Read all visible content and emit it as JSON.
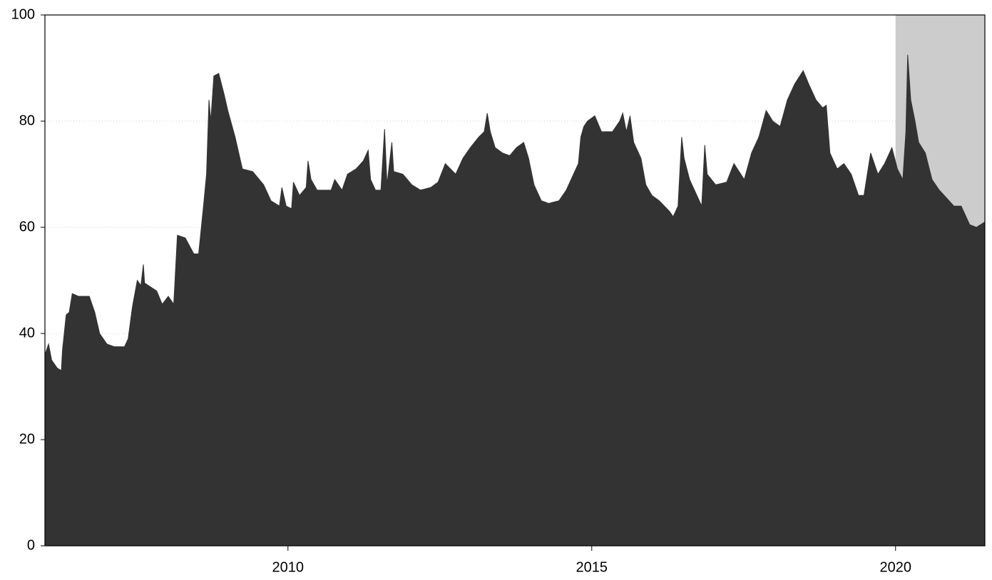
{
  "chart_data": {
    "type": "area",
    "color": "#333333",
    "grid": true,
    "x": [
      2006.0,
      2006.06,
      2006.11,
      2006.2,
      2006.27,
      2006.29,
      2006.35,
      2006.4,
      2006.45,
      2006.55,
      2006.73,
      2006.82,
      2006.9,
      2007.02,
      2007.14,
      2007.31,
      2007.37,
      2007.44,
      2007.52,
      2007.58,
      2007.62,
      2007.64,
      2007.84,
      2007.93,
      2008.03,
      2008.12,
      2008.18,
      2008.31,
      2008.45,
      2008.53,
      2008.61,
      2008.66,
      2008.7,
      2008.73,
      2008.78,
      2008.86,
      2008.95,
      2009.01,
      2009.13,
      2009.25,
      2009.42,
      2009.6,
      2009.72,
      2009.86,
      2009.9,
      2009.97,
      2010.06,
      2010.09,
      2010.19,
      2010.3,
      2010.33,
      2010.38,
      2010.48,
      2010.71,
      2010.77,
      2010.89,
      2010.98,
      2011.12,
      2011.24,
      2011.32,
      2011.36,
      2011.44,
      2011.53,
      2011.59,
      2011.63,
      2011.71,
      2011.74,
      2011.89,
      2012.04,
      2012.18,
      2012.35,
      2012.47,
      2012.59,
      2012.76,
      2012.88,
      2013.0,
      2013.14,
      2013.23,
      2013.28,
      2013.33,
      2013.41,
      2013.53,
      2013.65,
      2013.76,
      2013.88,
      2013.96,
      2014.05,
      2014.17,
      2014.29,
      2014.46,
      2014.58,
      2014.7,
      2014.78,
      2014.82,
      2014.87,
      2014.93,
      2015.05,
      2015.16,
      2015.34,
      2015.46,
      2015.51,
      2015.57,
      2015.63,
      2015.69,
      2015.81,
      2015.89,
      2015.99,
      2016.11,
      2016.28,
      2016.34,
      2016.42,
      2016.48,
      2016.52,
      2016.61,
      2016.73,
      2016.81,
      2016.86,
      2016.9,
      2017.04,
      2017.22,
      2017.34,
      2017.51,
      2017.63,
      2017.75,
      2017.87,
      2017.98,
      2018.1,
      2018.22,
      2018.34,
      2018.48,
      2018.57,
      2018.69,
      2018.8,
      2018.86,
      2018.92,
      2019.04,
      2019.15,
      2019.27,
      2019.39,
      2019.48,
      2019.59,
      2019.71,
      2019.82,
      2019.94,
      2020.03,
      2020.12,
      2020.17,
      2020.2,
      2020.25,
      2020.32,
      2020.38,
      2020.49,
      2020.6,
      2020.72,
      2020.84,
      2020.96,
      2021.08,
      2021.22,
      2021.33,
      2021.47
    ],
    "values": [
      36,
      38,
      35,
      33.5,
      33,
      37,
      43.5,
      44,
      47.5,
      47,
      47,
      44,
      40,
      38,
      37.5,
      37.5,
      39,
      45,
      50,
      49,
      53,
      49.5,
      48,
      45.5,
      47,
      45.5,
      58.5,
      58,
      55,
      55,
      64,
      70,
      84,
      80,
      88.5,
      89,
      85,
      82,
      77,
      71,
      70.5,
      68,
      65,
      64,
      67.5,
      64,
      63.5,
      68.5,
      66,
      67.5,
      72.5,
      69,
      67,
      67,
      69,
      67,
      70,
      71,
      72.5,
      74.5,
      69,
      67,
      67,
      78.5,
      68,
      76,
      70.5,
      70,
      68,
      67,
      67.5,
      68.5,
      72,
      70,
      73,
      75,
      77,
      78,
      81.5,
      78,
      75,
      74,
      73.5,
      75,
      76,
      73,
      68,
      65,
      64.5,
      65,
      67,
      70,
      72,
      77,
      79,
      80,
      81,
      78,
      78,
      80,
      81.5,
      78,
      81,
      76,
      73,
      68,
      66,
      65,
      63,
      62,
      64,
      77,
      73,
      69,
      66,
      64,
      75.5,
      70,
      68,
      68.5,
      72,
      69,
      74,
      77,
      82,
      80,
      79,
      84,
      87,
      89.5,
      87,
      84,
      82.5,
      83,
      74,
      71,
      72,
      70,
      66,
      66,
      74,
      70,
      72,
      75,
      71,
      69,
      78,
      92.5,
      84,
      80,
      76,
      74,
      69,
      67,
      65.5,
      64,
      64,
      60.5,
      60,
      61
    ],
    "xlim": [
      2006.0,
      2021.47
    ],
    "xticks": [
      2010,
      2015,
      2020
    ],
    "ylim": [
      0,
      100
    ],
    "yticks": [
      0,
      20,
      40,
      60,
      80,
      100
    ],
    "shaded_region": {
      "xlim": [
        2020,
        2021.47
      ],
      "color": "#cccccc"
    }
  }
}
